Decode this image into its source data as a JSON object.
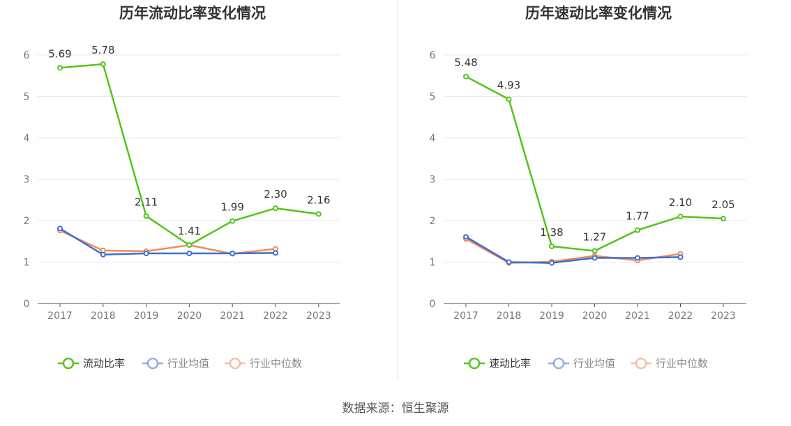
{
  "chart_data": [
    {
      "type": "line",
      "title": "历年流动比率变化情况",
      "categories": [
        "2017",
        "2018",
        "2019",
        "2020",
        "2021",
        "2022",
        "2023"
      ],
      "ylim": [
        0,
        6
      ],
      "yticks": [
        "0",
        "1",
        "2",
        "3",
        "4",
        "5",
        "6"
      ],
      "grid": true,
      "legend_position": "bottom",
      "series": [
        {
          "name": "流动比率",
          "color": "#52c41a",
          "values": [
            5.69,
            5.78,
            2.11,
            1.41,
            1.99,
            2.3,
            2.16
          ],
          "labels": [
            "5.69",
            "5.78",
            "2.11",
            "1.41",
            "1.99",
            "2.30",
            "2.16"
          ]
        },
        {
          "name": "行业均值",
          "color": "#3b6fd4",
          "values": [
            1.81,
            1.18,
            1.21,
            1.21,
            1.21,
            1.22,
            null
          ]
        },
        {
          "name": "行业中位数",
          "color": "#f08a5d",
          "values": [
            1.76,
            1.28,
            1.26,
            1.41,
            1.2,
            1.32,
            null
          ]
        }
      ]
    },
    {
      "type": "line",
      "title": "历年速动比率变化情况",
      "categories": [
        "2017",
        "2018",
        "2019",
        "2020",
        "2021",
        "2022",
        "2023"
      ],
      "ylim": [
        0,
        6
      ],
      "yticks": [
        "0",
        "1",
        "2",
        "3",
        "4",
        "5",
        "6"
      ],
      "grid": true,
      "legend_position": "bottom",
      "series": [
        {
          "name": "速动比率",
          "color": "#52c41a",
          "values": [
            5.48,
            4.93,
            1.38,
            1.27,
            1.77,
            2.1,
            2.05
          ],
          "labels": [
            "5.48",
            "4.93",
            "1.38",
            "1.27",
            "1.77",
            "2.10",
            "2.05"
          ]
        },
        {
          "name": "行业均值",
          "color": "#3b6fd4",
          "values": [
            1.61,
            1.0,
            0.98,
            1.1,
            1.1,
            1.12,
            null
          ]
        },
        {
          "name": "行业中位数",
          "color": "#f08a5d",
          "values": [
            1.56,
            0.98,
            1.01,
            1.15,
            1.04,
            1.2,
            null
          ]
        }
      ]
    }
  ],
  "footer": {
    "source": "数据来源：恒生聚源"
  }
}
